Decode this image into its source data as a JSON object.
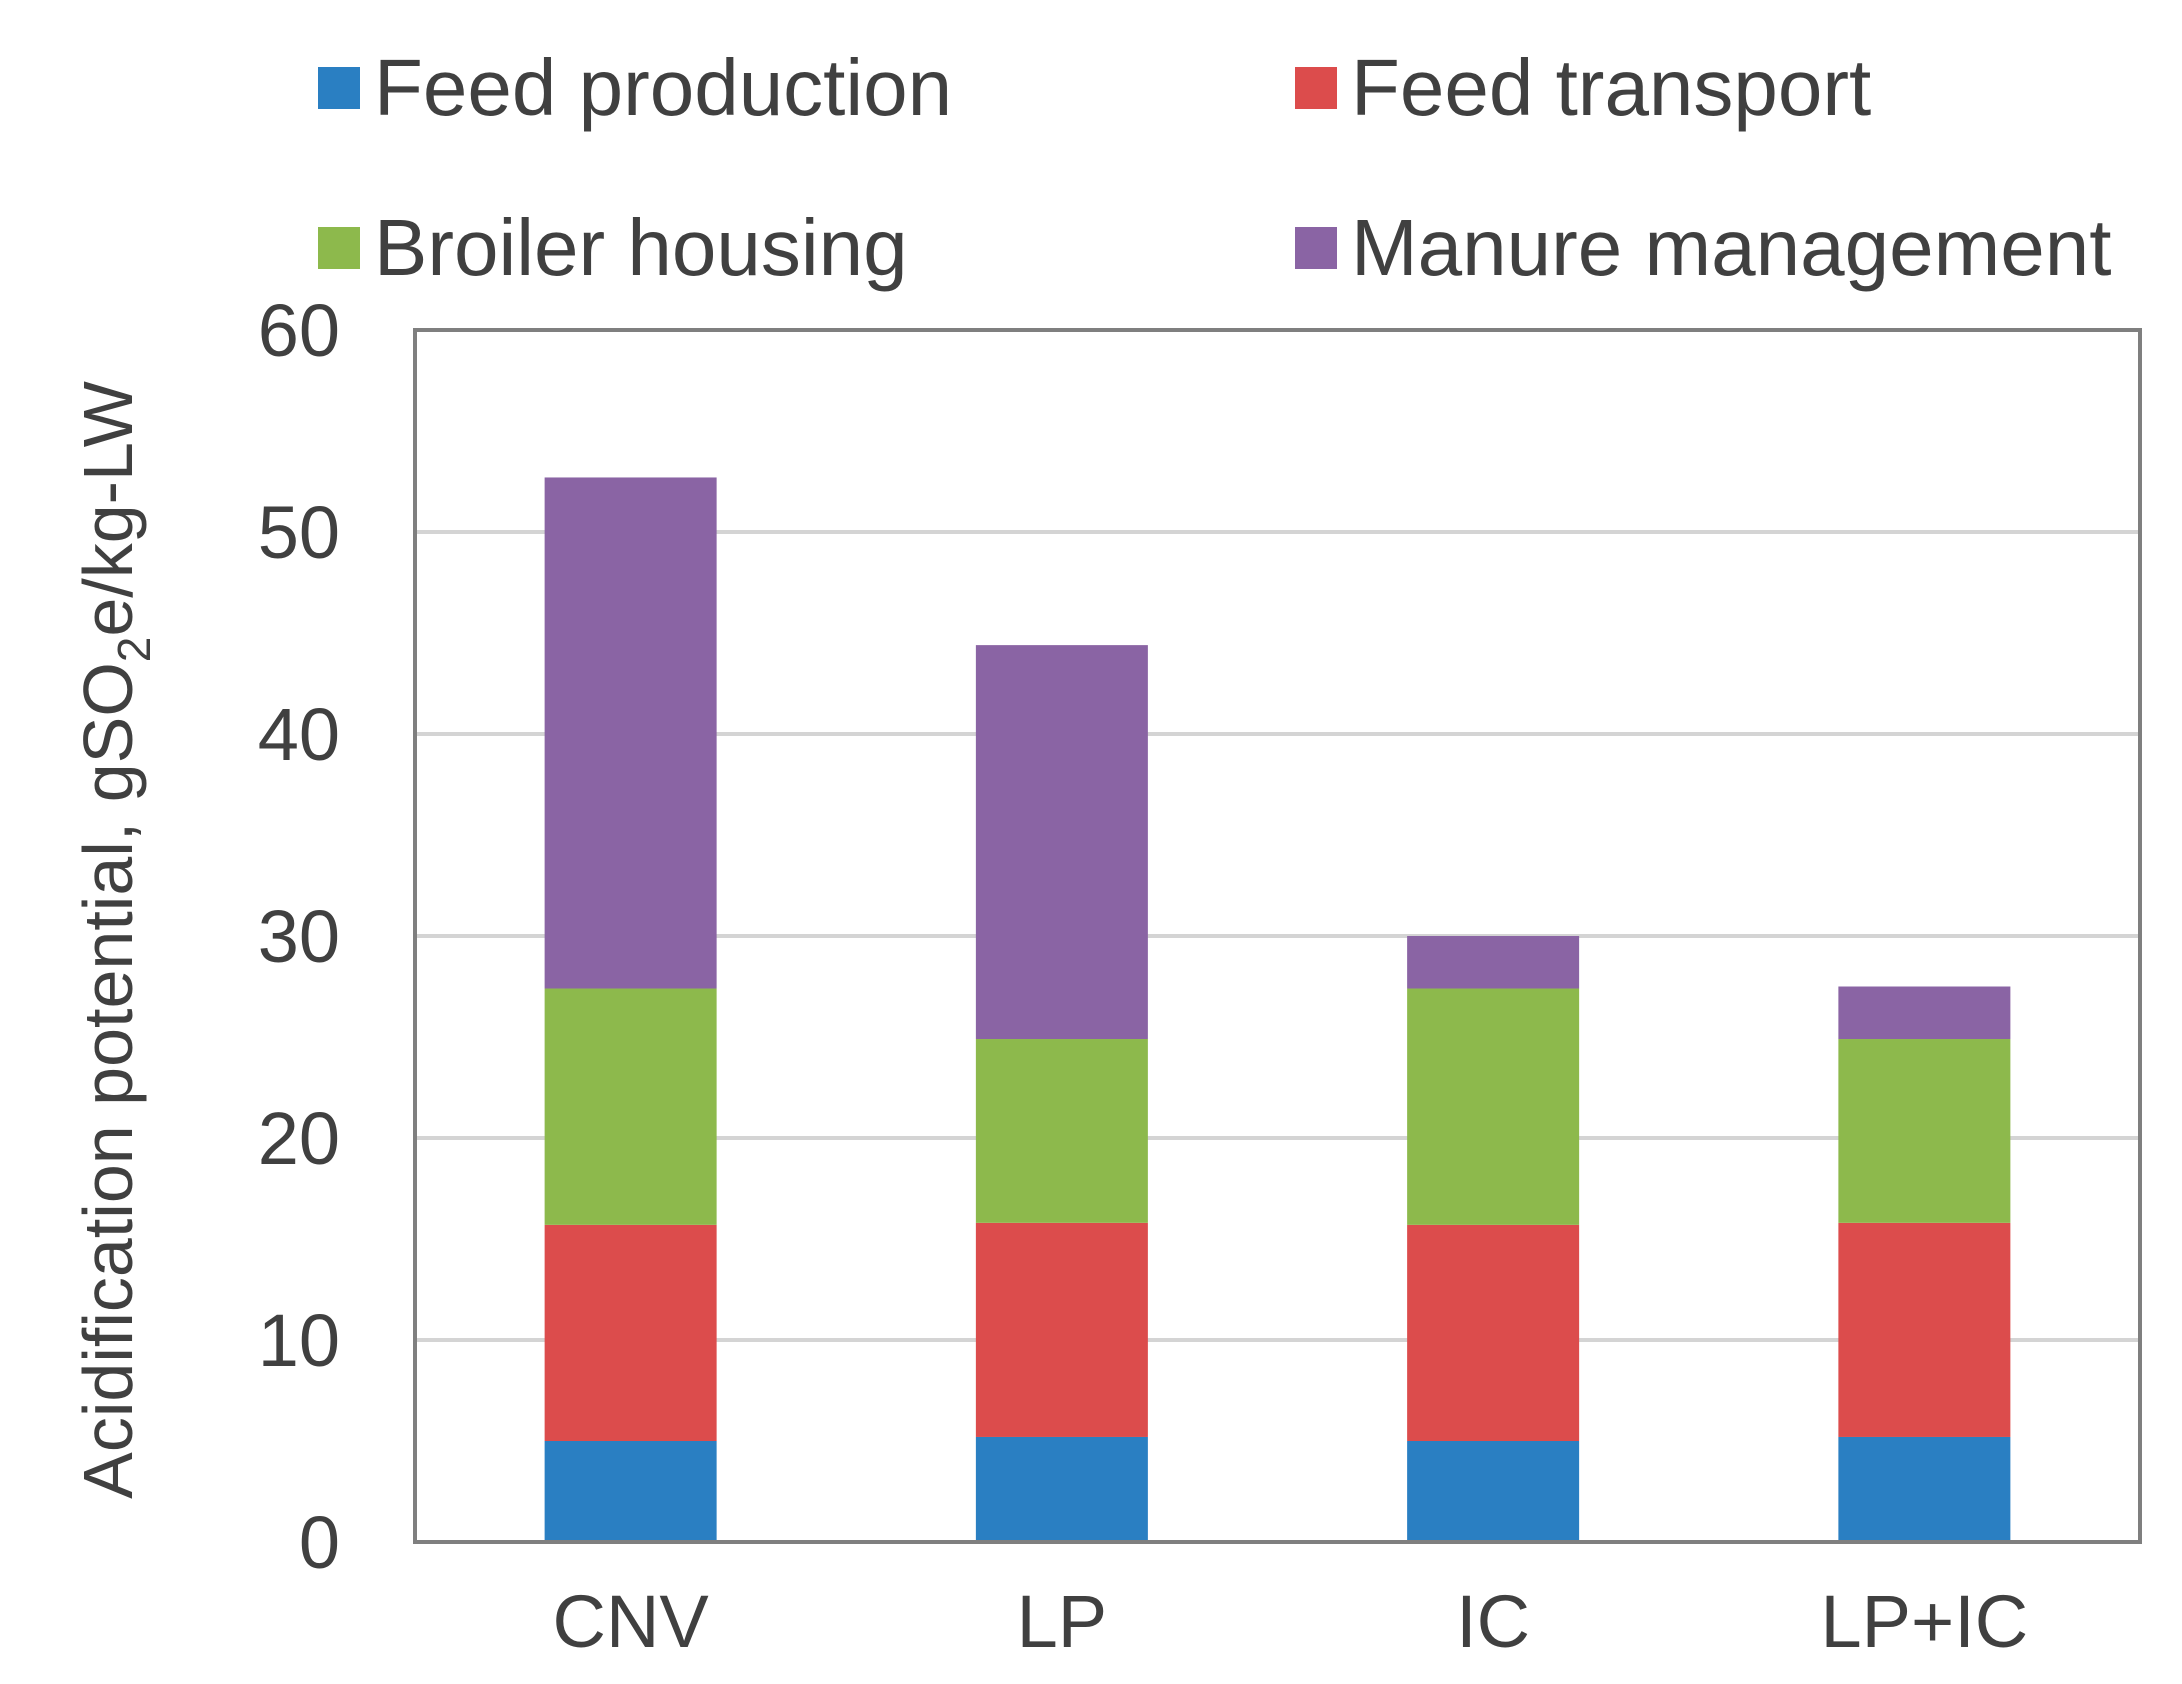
{
  "chart_data": {
    "type": "bar",
    "stacked": true,
    "categories": [
      "CNV",
      "LP",
      "IC",
      "LP+IC"
    ],
    "series": [
      {
        "name": "Feed production",
        "color": "#2a7fc2",
        "values": [
          5.0,
          5.2,
          5.0,
          5.2
        ]
      },
      {
        "name": "Feed transport",
        "color": "#dc4c4c",
        "values": [
          10.7,
          10.6,
          10.7,
          10.6
        ]
      },
      {
        "name": "Broiler housing",
        "color": "#8db94c",
        "values": [
          11.7,
          9.1,
          11.7,
          9.1
        ]
      },
      {
        "name": "Manure management",
        "color": "#8a64a4",
        "values": [
          25.3,
          19.5,
          2.6,
          2.6
        ]
      }
    ],
    "ylabel": "Acidification potential,  gSO",
    "ylabel_subscript": "2",
    "ylabel_suffix": "e/kg-LW",
    "ylim": [
      0,
      60
    ],
    "yticks": [
      0,
      10,
      20,
      30,
      40,
      50,
      60
    ],
    "grid": true,
    "legend_position": "top"
  }
}
